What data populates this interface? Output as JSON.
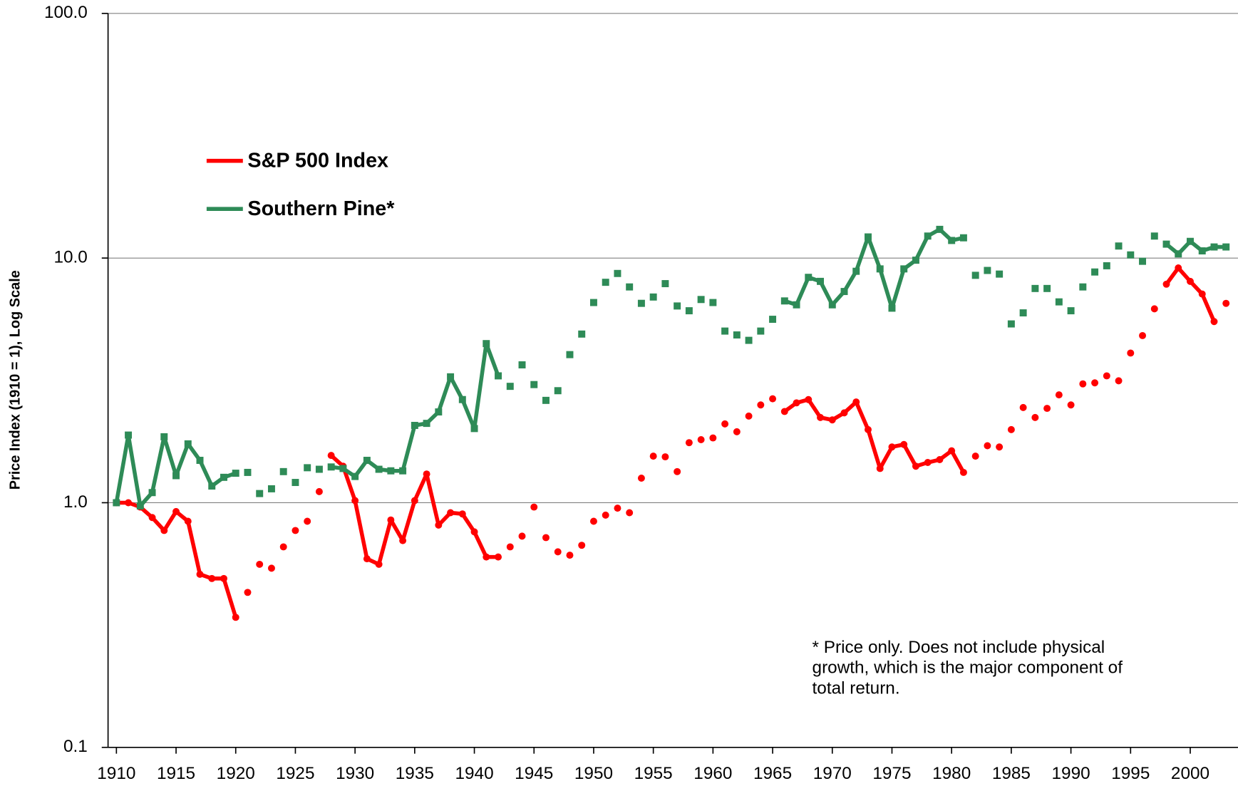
{
  "chart_data": {
    "type": "line",
    "log_scale_y": true,
    "y_label": "Price Index (1910 = 1), Log Scale",
    "x": [
      1910,
      1911,
      1912,
      1913,
      1914,
      1915,
      1916,
      1917,
      1918,
      1919,
      1920,
      1921,
      1922,
      1923,
      1924,
      1925,
      1926,
      1927,
      1928,
      1929,
      1930,
      1931,
      1932,
      1933,
      1934,
      1935,
      1936,
      1937,
      1938,
      1939,
      1940,
      1941,
      1942,
      1943,
      1944,
      1945,
      1946,
      1947,
      1948,
      1949,
      1950,
      1951,
      1952,
      1953,
      1954,
      1955,
      1956,
      1957,
      1958,
      1959,
      1960,
      1961,
      1962,
      1963,
      1964,
      1965,
      1966,
      1967,
      1968,
      1969,
      1970,
      1971,
      1972,
      1973,
      1974,
      1975,
      1976,
      1977,
      1978,
      1979,
      1980,
      1981,
      1982,
      1983,
      1984,
      1985,
      1986,
      1987,
      1988,
      1989,
      1990,
      1991,
      1992,
      1993,
      1994,
      1995,
      1996,
      1997,
      1998,
      1999,
      2000,
      2001,
      2002,
      2003
    ],
    "series": [
      {
        "name": "S&P 500 Index",
        "color": "#ff0000",
        "marker": "circle",
        "line_ranges": [
          [
            1910,
            1920
          ],
          [
            1928,
            1942
          ],
          [
            1966,
            1981
          ],
          [
            1998,
            2002
          ]
        ],
        "values": [
          1.0,
          1.0,
          0.96,
          0.87,
          0.77,
          0.92,
          0.84,
          0.51,
          0.49,
          0.49,
          0.34,
          0.43,
          0.56,
          0.54,
          0.66,
          0.77,
          0.84,
          1.11,
          1.56,
          1.41,
          1.02,
          0.59,
          0.56,
          0.85,
          0.7,
          1.02,
          1.31,
          0.81,
          0.91,
          0.9,
          0.76,
          0.6,
          0.6,
          0.66,
          0.73,
          0.96,
          0.72,
          0.63,
          0.61,
          0.67,
          0.84,
          0.89,
          0.95,
          0.91,
          1.26,
          1.55,
          1.54,
          1.34,
          1.76,
          1.81,
          1.84,
          2.1,
          1.95,
          2.26,
          2.51,
          2.66,
          2.36,
          2.56,
          2.64,
          2.23,
          2.18,
          2.33,
          2.58,
          1.99,
          1.38,
          1.69,
          1.73,
          1.41,
          1.46,
          1.5,
          1.63,
          1.33,
          1.55,
          1.71,
          1.69,
          1.99,
          2.45,
          2.23,
          2.43,
          2.76,
          2.51,
          3.06,
          3.09,
          3.3,
          3.15,
          4.09,
          4.82,
          6.2,
          7.82,
          9.11,
          8.03,
          7.13,
          5.5,
          6.53
        ]
      },
      {
        "name": "Southern Pine*",
        "color": "#2e8b57",
        "marker": "square",
        "line_ranges": [
          [
            1910,
            1920
          ],
          [
            1928,
            1942
          ],
          [
            1966,
            1981
          ],
          [
            1998,
            2003
          ]
        ],
        "values": [
          1.0,
          1.89,
          0.97,
          1.1,
          1.86,
          1.29,
          1.74,
          1.49,
          1.17,
          1.27,
          1.32,
          1.33,
          1.09,
          1.14,
          1.34,
          1.21,
          1.39,
          1.37,
          1.4,
          1.38,
          1.28,
          1.49,
          1.37,
          1.35,
          1.35,
          2.07,
          2.11,
          2.35,
          3.27,
          2.64,
          2.01,
          4.47,
          3.3,
          2.99,
          3.66,
          3.04,
          2.62,
          2.87,
          4.03,
          4.89,
          6.58,
          7.96,
          8.65,
          7.62,
          6.53,
          6.93,
          7.86,
          6.37,
          6.09,
          6.77,
          6.58,
          5.03,
          4.85,
          4.61,
          5.03,
          5.62,
          6.68,
          6.44,
          8.34,
          8.03,
          6.44,
          7.3,
          8.83,
          12.2,
          9.03,
          6.24,
          9.03,
          9.8,
          12.3,
          13.1,
          11.8,
          12.1,
          8.5,
          8.9,
          8.6,
          5.38,
          5.97,
          7.51,
          7.51,
          6.62,
          6.09,
          7.62,
          8.77,
          9.3,
          11.2,
          10.3,
          9.7,
          12.3,
          11.4,
          10.4,
          11.7,
          10.7,
          11.1,
          11.1
        ]
      }
    ],
    "xlim": [
      1909.3,
      2004
    ],
    "xticks": [
      1910,
      1915,
      1920,
      1925,
      1930,
      1935,
      1940,
      1945,
      1950,
      1955,
      1960,
      1965,
      1970,
      1975,
      1980,
      1985,
      1990,
      1995,
      2000
    ],
    "ylim": [
      0.1,
      100
    ],
    "yticks": [
      0.1,
      {
        "value": 1,
        "label": "1.0"
      },
      {
        "value": 10,
        "label": "10.0"
      },
      {
        "value": 100,
        "label": "100.0"
      }
    ],
    "grid": true,
    "legend": "upper left",
    "note": [
      "* Price only. Does not include physical",
      "growth, which is the major component of",
      "total return."
    ]
  }
}
